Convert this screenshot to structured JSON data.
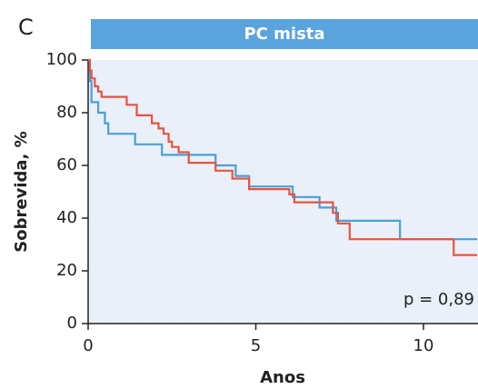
{
  "chart_data": {
    "type": "line",
    "step": true,
    "panel_label": "C",
    "title": "PC mista",
    "xlabel": "Anos",
    "ylabel": "Sobrevida, %",
    "annotation": "p = 0,89",
    "xlim": [
      0,
      11.6
    ],
    "ylim": [
      0,
      100
    ],
    "xticks": [
      0,
      5,
      10
    ],
    "yticks": [
      0,
      20,
      40,
      60,
      80,
      100
    ],
    "series": [
      {
        "color": "#4a9fd8",
        "x": [
          0,
          0.05,
          0.1,
          0.3,
          0.5,
          0.6,
          1.4,
          2.2,
          3.8,
          4.4,
          4.8,
          6.1,
          6.9,
          7.4,
          9.3,
          11.6
        ],
        "values": [
          100,
          92,
          84,
          80,
          76,
          72,
          68,
          64,
          60,
          56,
          52,
          48,
          44,
          39,
          32,
          32
        ]
      },
      {
        "color": "#e8533f",
        "x": [
          0,
          0.05,
          0.1,
          0.2,
          0.3,
          0.4,
          1.15,
          1.45,
          1.9,
          2.1,
          2.25,
          2.4,
          2.5,
          2.7,
          3.0,
          3.8,
          4.3,
          4.8,
          6.0,
          6.15,
          7.3,
          7.45,
          7.8,
          10.9,
          11.6
        ],
        "values": [
          100,
          96,
          93,
          90,
          88,
          86,
          83,
          79,
          76,
          74,
          72,
          69,
          67,
          65,
          61,
          58,
          55,
          51,
          49,
          46,
          42,
          38,
          32,
          26,
          26
        ]
      }
    ]
  }
}
